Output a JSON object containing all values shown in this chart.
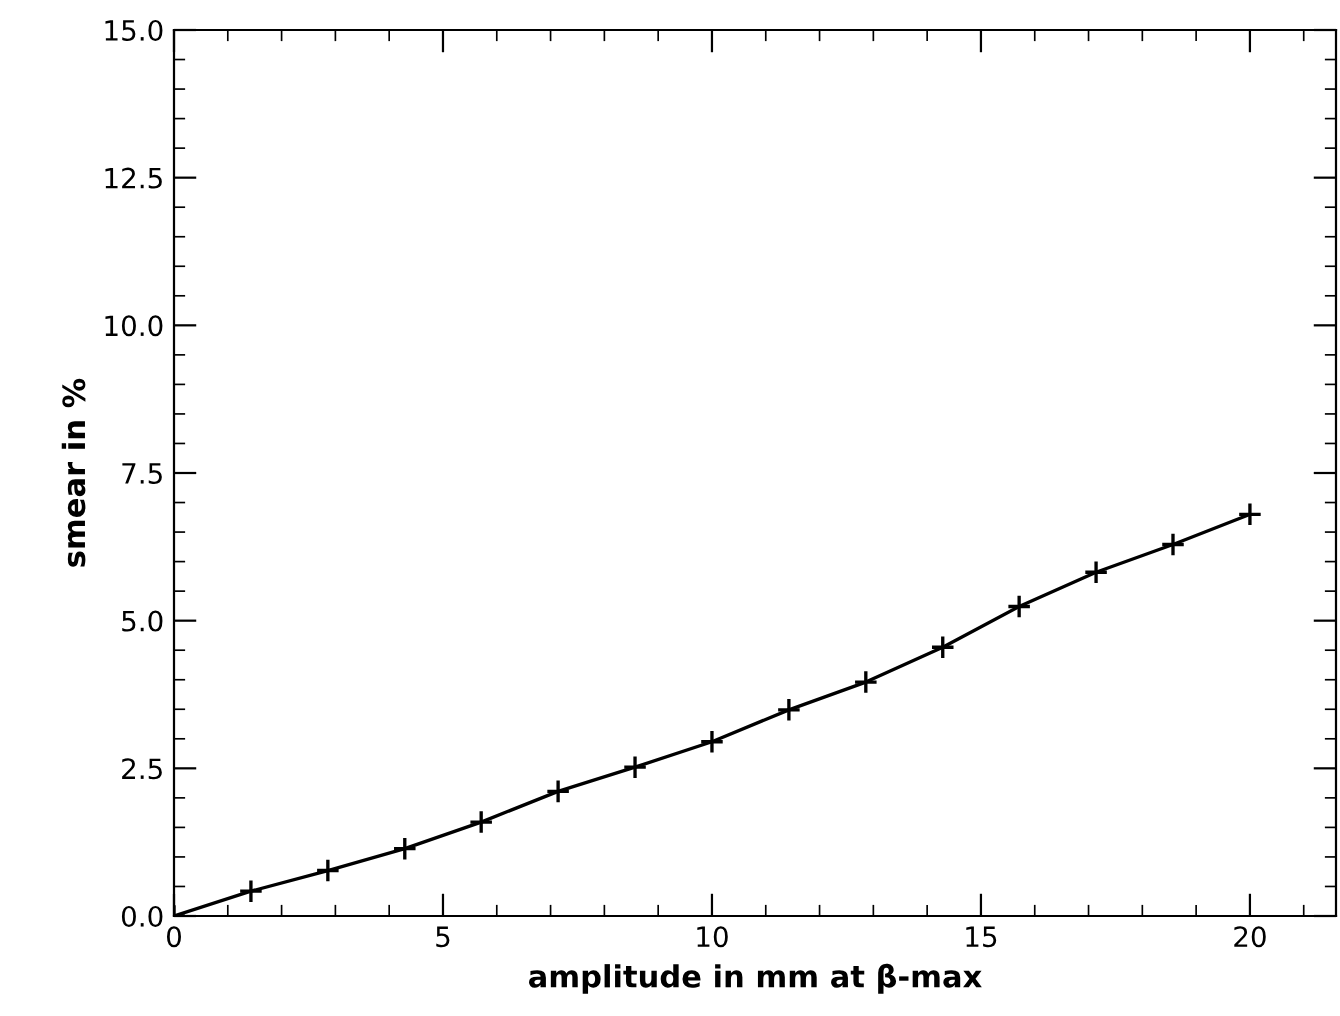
{
  "chart_data": {
    "type": "line",
    "xlabel": "amplitude in mm at β-max",
    "ylabel": "smear in %",
    "x": [
      0,
      1.43,
      2.86,
      4.29,
      5.71,
      7.14,
      8.57,
      10,
      11.43,
      12.86,
      14.29,
      15.71,
      17.14,
      18.57,
      20
    ],
    "series": [
      {
        "color": "#000000",
        "values": [
          0,
          0.42,
          0.77,
          1.14,
          1.59,
          2.11,
          2.52,
          2.95,
          3.49,
          3.96,
          4.55,
          5.24,
          5.82,
          6.29,
          6.8
        ]
      }
    ],
    "xlim": [
      0,
      21.6
    ],
    "xticks": [
      0,
      5,
      10,
      15,
      20
    ],
    "ylim": [
      0,
      15
    ],
    "yticks": [
      {
        "value": 0,
        "label": "0.0"
      },
      {
        "value": 2.5,
        "label": "2.5"
      },
      {
        "value": 5,
        "label": "5.0"
      },
      {
        "value": 7.5,
        "label": "7.5"
      },
      {
        "value": 10,
        "label": "10.0"
      },
      {
        "value": 12.5,
        "label": "12.5"
      },
      {
        "value": 15,
        "label": "15.0"
      }
    ],
    "marker": "cross",
    "line_style": "solid",
    "grid": false,
    "legend": false
  }
}
